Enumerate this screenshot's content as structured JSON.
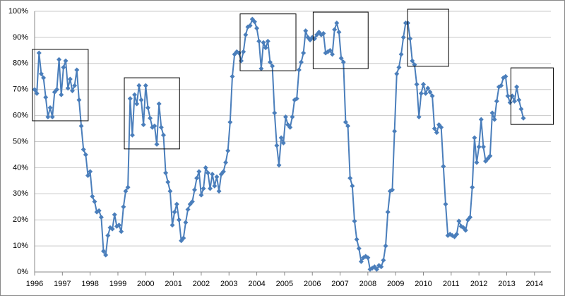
{
  "chart_data": {
    "type": "line",
    "x": [
      1996,
      1996.08,
      1996.16,
      1996.24,
      1996.32,
      1996.4,
      1996.48,
      1996.56,
      1996.64,
      1996.72,
      1996.8,
      1996.88,
      1996.96,
      1997.04,
      1997.12,
      1997.2,
      1997.28,
      1997.36,
      1997.44,
      1997.52,
      1997.6,
      1997.68,
      1997.76,
      1997.84,
      1997.92,
      1998,
      1998.08,
      1998.16,
      1998.24,
      1998.32,
      1998.4,
      1998.48,
      1998.56,
      1998.64,
      1998.72,
      1998.8,
      1998.88,
      1998.96,
      1999.04,
      1999.12,
      1999.2,
      1999.28,
      1999.36,
      1999.44,
      1999.52,
      1999.6,
      1999.68,
      1999.76,
      1999.84,
      1999.92,
      2000,
      2000.08,
      2000.16,
      2000.24,
      2000.32,
      2000.4,
      2000.48,
      2000.56,
      2000.64,
      2000.72,
      2000.8,
      2000.88,
      2000.96,
      2001.04,
      2001.12,
      2001.2,
      2001.28,
      2001.36,
      2001.44,
      2001.52,
      2001.6,
      2001.68,
      2001.76,
      2001.84,
      2001.92,
      2002,
      2002.08,
      2002.16,
      2002.24,
      2002.32,
      2002.4,
      2002.48,
      2002.56,
      2002.64,
      2002.72,
      2002.8,
      2002.88,
      2002.96,
      2003.04,
      2003.12,
      2003.2,
      2003.28,
      2003.36,
      2003.44,
      2003.52,
      2003.6,
      2003.68,
      2003.76,
      2003.84,
      2003.92,
      2004,
      2004.08,
      2004.16,
      2004.24,
      2004.32,
      2004.4,
      2004.48,
      2004.56,
      2004.64,
      2004.72,
      2004.8,
      2004.88,
      2004.96,
      2005.04,
      2005.12,
      2005.2,
      2005.28,
      2005.36,
      2005.44,
      2005.52,
      2005.6,
      2005.68,
      2005.76,
      2005.84,
      2005.92,
      2006,
      2006.08,
      2006.16,
      2006.24,
      2006.32,
      2006.4,
      2006.48,
      2006.56,
      2006.64,
      2006.72,
      2006.8,
      2006.88,
      2006.96,
      2007.04,
      2007.12,
      2007.2,
      2007.28,
      2007.36,
      2007.44,
      2007.52,
      2007.6,
      2007.68,
      2007.76,
      2007.84,
      2007.92,
      2008,
      2008.08,
      2008.16,
      2008.24,
      2008.32,
      2008.4,
      2008.48,
      2008.56,
      2008.64,
      2008.72,
      2008.8,
      2008.88,
      2008.96,
      2009.04,
      2009.12,
      2009.2,
      2009.28,
      2009.36,
      2009.44,
      2009.52,
      2009.6,
      2009.68,
      2009.76,
      2009.84,
      2009.92,
      2010,
      2010.08,
      2010.16,
      2010.24,
      2010.32,
      2010.4,
      2010.48,
      2010.56,
      2010.64,
      2010.72,
      2010.8,
      2010.88,
      2010.96,
      2011.04,
      2011.12,
      2011.2,
      2011.28,
      2011.36,
      2011.44,
      2011.52,
      2011.6,
      2011.68,
      2011.76,
      2011.84,
      2011.92,
      2012,
      2012.08,
      2012.16,
      2012.24,
      2012.32,
      2012.4,
      2012.48,
      2012.56,
      2012.64,
      2012.72,
      2012.8,
      2012.88,
      2012.96,
      2013.04,
      2013.12,
      2013.2,
      2013.28,
      2013.36,
      2013.44,
      2013.52,
      2013.6
    ],
    "series": [
      {
        "color": "#4a7ebb",
        "values": [
          70,
          68.5,
          84,
          76,
          74.5,
          67,
          59.5,
          63,
          59.5,
          69,
          70,
          81.5,
          68,
          78.5,
          81,
          70.5,
          74,
          69.5,
          71.5,
          77.5,
          66,
          56,
          47,
          45,
          37,
          38.5,
          29,
          27,
          23,
          23.5,
          21,
          8,
          6.5,
          14,
          17,
          16.5,
          22,
          17.5,
          18,
          15.5,
          25,
          31,
          32.5,
          66.5,
          52.5,
          68,
          64.5,
          71.5,
          66,
          56.5,
          71.5,
          63,
          59,
          55.5,
          56,
          49,
          64.5,
          55.5,
          52.5,
          38,
          34.5,
          31,
          18,
          23,
          26,
          20,
          12,
          13,
          19,
          24,
          26,
          27,
          31.5,
          36,
          38.5,
          29.5,
          32,
          40,
          38,
          32,
          37.5,
          33,
          36.5,
          31,
          37.5,
          38.5,
          42,
          46.5,
          57.5,
          75,
          83.5,
          84.5,
          84,
          81,
          84.5,
          91,
          94,
          94.5,
          97,
          96,
          93.5,
          88.5,
          78,
          88,
          86,
          88.5,
          80.5,
          79,
          61,
          48.5,
          41,
          51.5,
          49.5,
          59.5,
          56.5,
          55.5,
          59.5,
          66,
          66.5,
          77.5,
          80.5,
          84,
          92.5,
          90,
          89,
          90,
          89.5,
          91,
          92,
          91,
          91.5,
          84,
          84.5,
          85,
          83.5,
          93,
          95.5,
          92,
          82,
          80.5,
          57.5,
          56,
          36,
          33,
          19.5,
          12.5,
          9,
          4,
          5.5,
          6,
          5.5,
          1,
          1.5,
          2,
          1,
          2.5,
          2,
          4.5,
          10,
          23,
          31,
          31.5,
          54,
          76,
          78.5,
          83.5,
          90,
          95.5,
          95.5,
          89.5,
          81,
          79.5,
          72,
          59.5,
          68.5,
          72,
          68.5,
          70.5,
          69,
          67.5,
          55,
          53.5,
          56.5,
          55.5,
          40.5,
          26,
          14,
          14.5,
          14,
          13.5,
          14.5,
          19.5,
          17.5,
          17,
          16,
          20,
          21,
          32.5,
          51.5,
          42,
          48,
          58.5,
          48,
          42.5,
          43.5,
          44.5,
          61,
          58.5,
          65.5,
          71,
          71.5,
          74.5,
          75,
          67.5,
          65,
          67.5,
          65.5,
          71,
          66,
          62.5,
          59
        ]
      }
    ],
    "xlim": [
      1996,
      2014.59
    ],
    "xticks": [
      1996,
      1997,
      1998,
      1999,
      2000,
      2001,
      2002,
      2003,
      2004,
      2005,
      2006,
      2007,
      2008,
      2009,
      2010,
      2011,
      2012,
      2013,
      2014
    ],
    "ylim": [
      0,
      100
    ],
    "yticks": [
      {
        "value": 0,
        "label": "0%"
      },
      {
        "value": 10,
        "label": "10%"
      },
      {
        "value": 20,
        "label": "20%"
      },
      {
        "value": 30,
        "label": "30%"
      },
      {
        "value": 40,
        "label": "40%"
      },
      {
        "value": 50,
        "label": "50%"
      },
      {
        "value": 60,
        "label": "60%"
      },
      {
        "value": 70,
        "label": "70%"
      },
      {
        "value": 80,
        "label": "80%"
      },
      {
        "value": 90,
        "label": "90%"
      },
      {
        "value": 100,
        "label": "100%"
      }
    ],
    "grid": true,
    "highlight_boxes": [
      {
        "x": [
          1995.92,
          1997.93
        ],
        "y": [
          58,
          85.4
        ]
      },
      {
        "x": [
          1999.23,
          2001.22
        ],
        "y": [
          47.2,
          74.5
        ]
      },
      {
        "x": [
          2003.4,
          2005.41
        ],
        "y": [
          77.2,
          99
        ]
      },
      {
        "x": [
          2006.03,
          2008.01
        ],
        "y": [
          78,
          99.7
        ]
      },
      {
        "x": [
          2009.43,
          2010.91
        ],
        "y": [
          78.9,
          100.8
        ]
      },
      {
        "x": [
          2013.15,
          2014.68
        ],
        "y": [
          56.6,
          78.3
        ]
      }
    ]
  }
}
